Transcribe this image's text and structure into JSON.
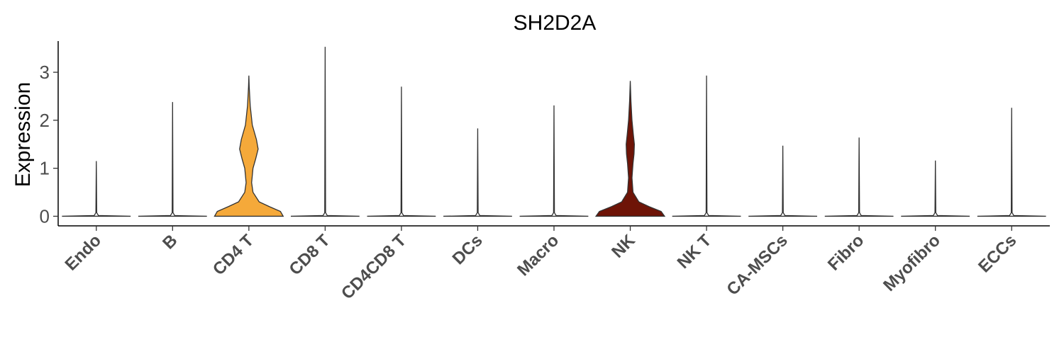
{
  "chart_data": {
    "type": "violin",
    "title": "SH2D2A",
    "xlabel": "",
    "ylabel": "Expression",
    "ylim": [
      -0.2,
      3.65
    ],
    "yticks": [
      0,
      1,
      2,
      3
    ],
    "grid": false,
    "legend": "none",
    "categories": [
      "Endo",
      "B",
      "CD4 T",
      "CD8 T",
      "CD4CD8 T",
      "DCs",
      "Macro",
      "NK",
      "NK T",
      "CA-MSCs",
      "Fibro",
      "Myofibro",
      "ECCs"
    ],
    "max_values": [
      1.15,
      2.38,
      2.93,
      3.53,
      2.7,
      1.83,
      2.31,
      2.82,
      2.93,
      1.47,
      1.64,
      1.16,
      2.26
    ],
    "colors": [
      "#ffffff",
      "#ffffff",
      "#f5a93a",
      "#ffffff",
      "#ffffff",
      "#ffffff",
      "#ffffff",
      "#6e1407",
      "#ffffff",
      "#ffffff",
      "#ffffff",
      "#ffffff",
      "#ffffff"
    ],
    "density": {
      "CD4 T": [
        [
          0,
          1.0
        ],
        [
          0.1,
          0.92
        ],
        [
          0.2,
          0.6
        ],
        [
          0.3,
          0.3
        ],
        [
          0.5,
          0.12
        ],
        [
          0.7,
          0.08
        ],
        [
          1.0,
          0.12
        ],
        [
          1.2,
          0.2
        ],
        [
          1.4,
          0.27
        ],
        [
          1.6,
          0.22
        ],
        [
          1.9,
          0.1
        ],
        [
          2.3,
          0.04
        ],
        [
          2.7,
          0.01
        ],
        [
          2.93,
          0
        ]
      ],
      "NK": [
        [
          0,
          1.0
        ],
        [
          0.1,
          0.9
        ],
        [
          0.2,
          0.55
        ],
        [
          0.3,
          0.25
        ],
        [
          0.5,
          0.08
        ],
        [
          0.8,
          0.05
        ],
        [
          1.1,
          0.08
        ],
        [
          1.3,
          0.11
        ],
        [
          1.5,
          0.12
        ],
        [
          1.7,
          0.09
        ],
        [
          2.0,
          0.05
        ],
        [
          2.4,
          0.02
        ],
        [
          2.82,
          0
        ]
      ]
    }
  }
}
